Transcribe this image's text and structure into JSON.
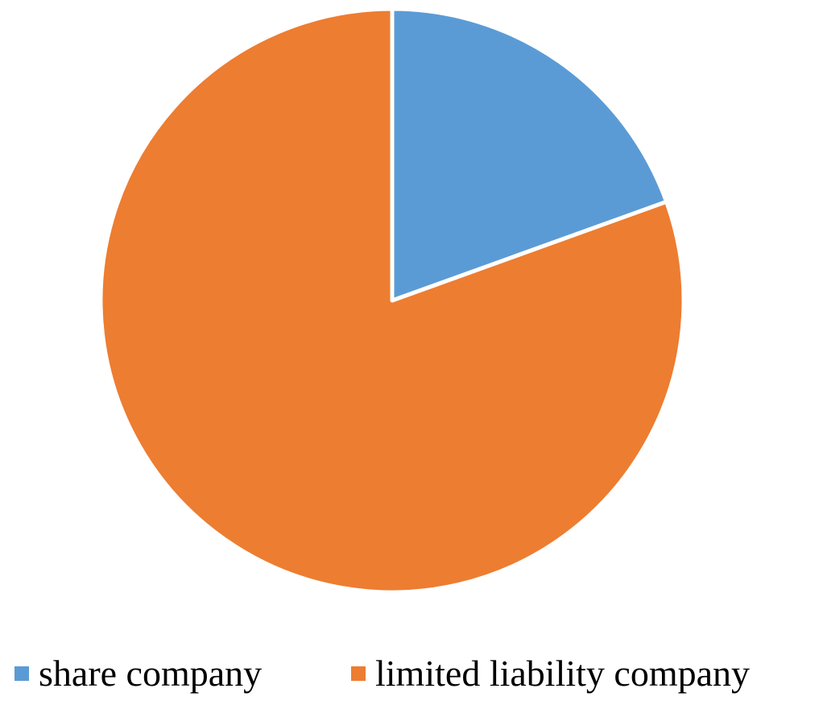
{
  "chart_data": {
    "type": "pie",
    "title": "",
    "slices": [
      {
        "label": "share company",
        "value": 19.5,
        "color": "#5b9bd5"
      },
      {
        "label": "limited liability company",
        "value": 80.5,
        "color": "#ed7d31"
      }
    ],
    "start_angle_deg": 0,
    "direction": "clockwise",
    "legend_position": "bottom"
  }
}
